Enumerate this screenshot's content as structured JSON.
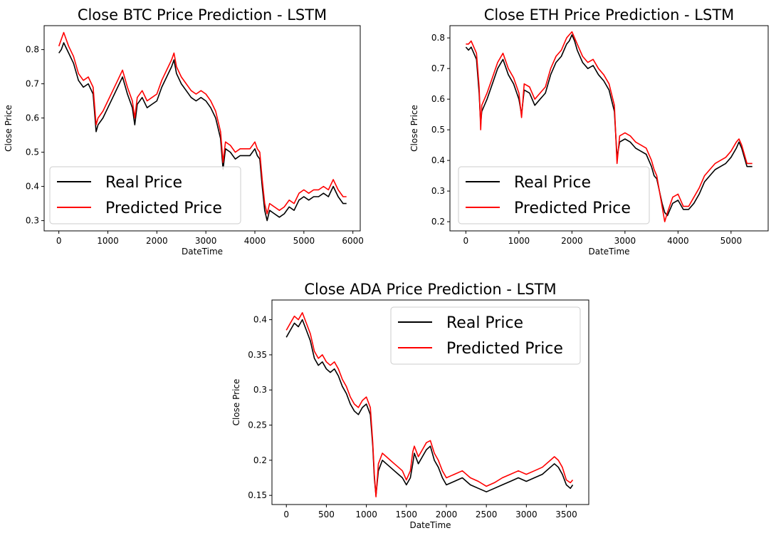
{
  "chart_data": [
    {
      "type": "line",
      "title": "Close BTC Price Prediction - LSTM",
      "xlabel": "DateTime",
      "ylabel": "Close Price",
      "xlim": [
        -300,
        6150
      ],
      "ylim": [
        0.27,
        0.87
      ],
      "xticks": [
        0,
        1000,
        2000,
        3000,
        4000,
        5000,
        6000
      ],
      "yticks": [
        0.3,
        0.4,
        0.5,
        0.6,
        0.7,
        0.8
      ],
      "legend": "lower-left",
      "series": [
        {
          "name": "Real Price",
          "color": "#000000",
          "x": [
            0,
            50,
            100,
            200,
            300,
            400,
            500,
            600,
            700,
            760,
            800,
            900,
            1000,
            1100,
            1200,
            1300,
            1400,
            1500,
            1550,
            1600,
            1700,
            1800,
            1900,
            2000,
            2100,
            2200,
            2300,
            2350,
            2400,
            2500,
            2600,
            2700,
            2800,
            2900,
            3000,
            3100,
            3200,
            3300,
            3350,
            3400,
            3500,
            3600,
            3700,
            3800,
            3900,
            4000,
            4050,
            4100,
            4150,
            4200,
            4250,
            4300,
            4400,
            4500,
            4600,
            4700,
            4800,
            4900,
            5000,
            5100,
            5200,
            5300,
            5400,
            5500,
            5600,
            5700,
            5800,
            5870
          ],
          "y": [
            0.79,
            0.8,
            0.82,
            0.79,
            0.76,
            0.71,
            0.69,
            0.7,
            0.67,
            0.56,
            0.58,
            0.6,
            0.63,
            0.66,
            0.69,
            0.72,
            0.67,
            0.63,
            0.58,
            0.64,
            0.66,
            0.63,
            0.64,
            0.65,
            0.69,
            0.72,
            0.75,
            0.77,
            0.73,
            0.7,
            0.68,
            0.66,
            0.65,
            0.66,
            0.65,
            0.63,
            0.6,
            0.54,
            0.45,
            0.51,
            0.5,
            0.48,
            0.49,
            0.49,
            0.49,
            0.51,
            0.49,
            0.48,
            0.4,
            0.33,
            0.3,
            0.33,
            0.32,
            0.31,
            0.32,
            0.34,
            0.33,
            0.36,
            0.37,
            0.36,
            0.37,
            0.37,
            0.38,
            0.37,
            0.4,
            0.37,
            0.35,
            0.35
          ]
        },
        {
          "name": "Predicted Price",
          "color": "#ff0000",
          "x": [
            0,
            50,
            100,
            200,
            300,
            400,
            500,
            600,
            700,
            760,
            800,
            900,
            1000,
            1100,
            1200,
            1300,
            1400,
            1500,
            1550,
            1600,
            1700,
            1800,
            1900,
            2000,
            2100,
            2200,
            2300,
            2350,
            2400,
            2500,
            2600,
            2700,
            2800,
            2900,
            3000,
            3100,
            3200,
            3300,
            3350,
            3400,
            3500,
            3600,
            3700,
            3800,
            3900,
            4000,
            4050,
            4100,
            4150,
            4200,
            4250,
            4300,
            4400,
            4500,
            4600,
            4700,
            4800,
            4900,
            5000,
            5100,
            5200,
            5300,
            5400,
            5500,
            5600,
            5700,
            5800,
            5870
          ],
          "y": [
            0.81,
            0.83,
            0.85,
            0.81,
            0.78,
            0.73,
            0.71,
            0.72,
            0.69,
            0.58,
            0.6,
            0.62,
            0.65,
            0.68,
            0.71,
            0.74,
            0.69,
            0.65,
            0.6,
            0.66,
            0.68,
            0.65,
            0.66,
            0.67,
            0.71,
            0.74,
            0.77,
            0.79,
            0.75,
            0.72,
            0.7,
            0.68,
            0.67,
            0.68,
            0.67,
            0.65,
            0.62,
            0.56,
            0.47,
            0.53,
            0.52,
            0.5,
            0.51,
            0.51,
            0.51,
            0.53,
            0.51,
            0.5,
            0.42,
            0.35,
            0.32,
            0.35,
            0.34,
            0.33,
            0.34,
            0.36,
            0.35,
            0.38,
            0.39,
            0.38,
            0.39,
            0.39,
            0.4,
            0.39,
            0.42,
            0.39,
            0.37,
            0.37
          ]
        }
      ]
    },
    {
      "type": "line",
      "title": "Close ETH Price Prediction - LSTM",
      "xlabel": "DateTime",
      "ylabel": "Close Price",
      "xlim": [
        -300,
        5700
      ],
      "ylim": [
        0.17,
        0.84
      ],
      "xticks": [
        0,
        1000,
        2000,
        3000,
        4000,
        5000
      ],
      "yticks": [
        0.2,
        0.3,
        0.4,
        0.5,
        0.6,
        0.7,
        0.8
      ],
      "legend": "lower-left",
      "series": [
        {
          "name": "Real Price",
          "color": "#000000",
          "x": [
            0,
            50,
            100,
            200,
            250,
            280,
            300,
            400,
            500,
            600,
            700,
            800,
            900,
            1000,
            1050,
            1100,
            1200,
            1300,
            1400,
            1500,
            1600,
            1700,
            1800,
            1900,
            1950,
            2000,
            2050,
            2100,
            2200,
            2300,
            2400,
            2500,
            2600,
            2700,
            2800,
            2850,
            2900,
            3000,
            3100,
            3200,
            3300,
            3400,
            3500,
            3550,
            3600,
            3700,
            3750,
            3800,
            3900,
            4000,
            4100,
            4200,
            4300,
            4400,
            4500,
            4600,
            4700,
            4800,
            4900,
            5000,
            5100,
            5150,
            5200,
            5300,
            5400
          ],
          "y": [
            0.77,
            0.76,
            0.77,
            0.73,
            0.62,
            0.52,
            0.56,
            0.6,
            0.65,
            0.7,
            0.73,
            0.68,
            0.65,
            0.6,
            0.55,
            0.63,
            0.62,
            0.58,
            0.6,
            0.62,
            0.68,
            0.72,
            0.74,
            0.78,
            0.79,
            0.81,
            0.79,
            0.76,
            0.72,
            0.7,
            0.71,
            0.68,
            0.66,
            0.63,
            0.56,
            0.41,
            0.46,
            0.47,
            0.46,
            0.44,
            0.43,
            0.42,
            0.38,
            0.35,
            0.34,
            0.26,
            0.23,
            0.22,
            0.26,
            0.27,
            0.24,
            0.24,
            0.26,
            0.29,
            0.33,
            0.35,
            0.37,
            0.38,
            0.39,
            0.41,
            0.44,
            0.46,
            0.44,
            0.38,
            0.38
          ]
        },
        {
          "name": "Predicted Price",
          "color": "#ff0000",
          "x": [
            0,
            50,
            100,
            200,
            250,
            280,
            300,
            400,
            500,
            600,
            700,
            800,
            900,
            1000,
            1050,
            1100,
            1200,
            1300,
            1400,
            1500,
            1600,
            1700,
            1800,
            1900,
            1950,
            2000,
            2050,
            2100,
            2200,
            2300,
            2400,
            2500,
            2600,
            2700,
            2800,
            2850,
            2900,
            3000,
            3100,
            3200,
            3300,
            3400,
            3500,
            3550,
            3600,
            3700,
            3750,
            3800,
            3900,
            4000,
            4100,
            4200,
            4300,
            4400,
            4500,
            4600,
            4700,
            4800,
            4900,
            5000,
            5100,
            5150,
            5200,
            5300,
            5400
          ],
          "y": [
            0.78,
            0.78,
            0.79,
            0.75,
            0.64,
            0.5,
            0.58,
            0.62,
            0.67,
            0.72,
            0.75,
            0.7,
            0.67,
            0.62,
            0.54,
            0.65,
            0.64,
            0.6,
            0.62,
            0.64,
            0.7,
            0.74,
            0.76,
            0.8,
            0.81,
            0.82,
            0.8,
            0.78,
            0.74,
            0.72,
            0.73,
            0.7,
            0.68,
            0.65,
            0.58,
            0.39,
            0.48,
            0.49,
            0.48,
            0.46,
            0.45,
            0.44,
            0.4,
            0.37,
            0.35,
            0.25,
            0.2,
            0.23,
            0.28,
            0.29,
            0.25,
            0.25,
            0.28,
            0.31,
            0.35,
            0.37,
            0.39,
            0.4,
            0.41,
            0.43,
            0.46,
            0.47,
            0.45,
            0.39,
            0.39
          ]
        }
      ]
    },
    {
      "type": "line",
      "title": "Close ADA Price Prediction - LSTM",
      "xlabel": "DateTime",
      "ylabel": "Close Price",
      "xlim": [
        -180,
        3780
      ],
      "ylim": [
        0.137,
        0.428
      ],
      "xticks": [
        0,
        500,
        1000,
        1500,
        2000,
        2500,
        3000,
        3500
      ],
      "yticks": [
        0.15,
        0.2,
        0.25,
        0.3,
        0.35,
        0.4
      ],
      "legend": "upper-right",
      "series": [
        {
          "name": "Real Price",
          "color": "#000000",
          "x": [
            0,
            50,
            100,
            150,
            200,
            250,
            300,
            350,
            400,
            450,
            500,
            550,
            600,
            650,
            700,
            750,
            800,
            850,
            900,
            950,
            1000,
            1050,
            1080,
            1100,
            1120,
            1150,
            1200,
            1250,
            1300,
            1350,
            1400,
            1450,
            1500,
            1550,
            1580,
            1600,
            1650,
            1700,
            1750,
            1800,
            1850,
            1900,
            1950,
            2000,
            2100,
            2200,
            2300,
            2400,
            2500,
            2600,
            2700,
            2800,
            2900,
            3000,
            3100,
            3200,
            3300,
            3350,
            3400,
            3450,
            3500,
            3550,
            3580
          ],
          "y": [
            0.375,
            0.385,
            0.395,
            0.39,
            0.4,
            0.385,
            0.37,
            0.345,
            0.335,
            0.34,
            0.33,
            0.325,
            0.33,
            0.32,
            0.305,
            0.295,
            0.28,
            0.27,
            0.265,
            0.275,
            0.28,
            0.265,
            0.22,
            0.175,
            0.15,
            0.185,
            0.2,
            0.195,
            0.19,
            0.185,
            0.18,
            0.175,
            0.165,
            0.175,
            0.195,
            0.21,
            0.195,
            0.205,
            0.215,
            0.22,
            0.2,
            0.19,
            0.175,
            0.165,
            0.17,
            0.175,
            0.165,
            0.16,
            0.155,
            0.16,
            0.165,
            0.17,
            0.175,
            0.17,
            0.175,
            0.18,
            0.19,
            0.195,
            0.19,
            0.18,
            0.165,
            0.16,
            0.165
          ]
        },
        {
          "name": "Predicted Price",
          "color": "#ff0000",
          "x": [
            0,
            50,
            100,
            150,
            200,
            250,
            300,
            350,
            400,
            450,
            500,
            550,
            600,
            650,
            700,
            750,
            800,
            850,
            900,
            950,
            1000,
            1050,
            1080,
            1100,
            1120,
            1150,
            1200,
            1250,
            1300,
            1350,
            1400,
            1450,
            1500,
            1550,
            1580,
            1600,
            1650,
            1700,
            1750,
            1800,
            1850,
            1900,
            1950,
            2000,
            2100,
            2200,
            2300,
            2400,
            2500,
            2600,
            2700,
            2800,
            2900,
            3000,
            3100,
            3200,
            3300,
            3350,
            3400,
            3450,
            3500,
            3550,
            3580
          ],
          "y": [
            0.385,
            0.395,
            0.405,
            0.4,
            0.41,
            0.395,
            0.38,
            0.355,
            0.345,
            0.35,
            0.34,
            0.335,
            0.34,
            0.33,
            0.315,
            0.305,
            0.29,
            0.28,
            0.275,
            0.285,
            0.29,
            0.275,
            0.225,
            0.18,
            0.148,
            0.195,
            0.21,
            0.205,
            0.2,
            0.195,
            0.19,
            0.185,
            0.172,
            0.185,
            0.212,
            0.22,
            0.205,
            0.215,
            0.225,
            0.228,
            0.21,
            0.2,
            0.185,
            0.175,
            0.18,
            0.185,
            0.175,
            0.17,
            0.163,
            0.168,
            0.175,
            0.18,
            0.185,
            0.18,
            0.185,
            0.19,
            0.2,
            0.205,
            0.2,
            0.19,
            0.172,
            0.168,
            0.172
          ]
        }
      ]
    }
  ]
}
